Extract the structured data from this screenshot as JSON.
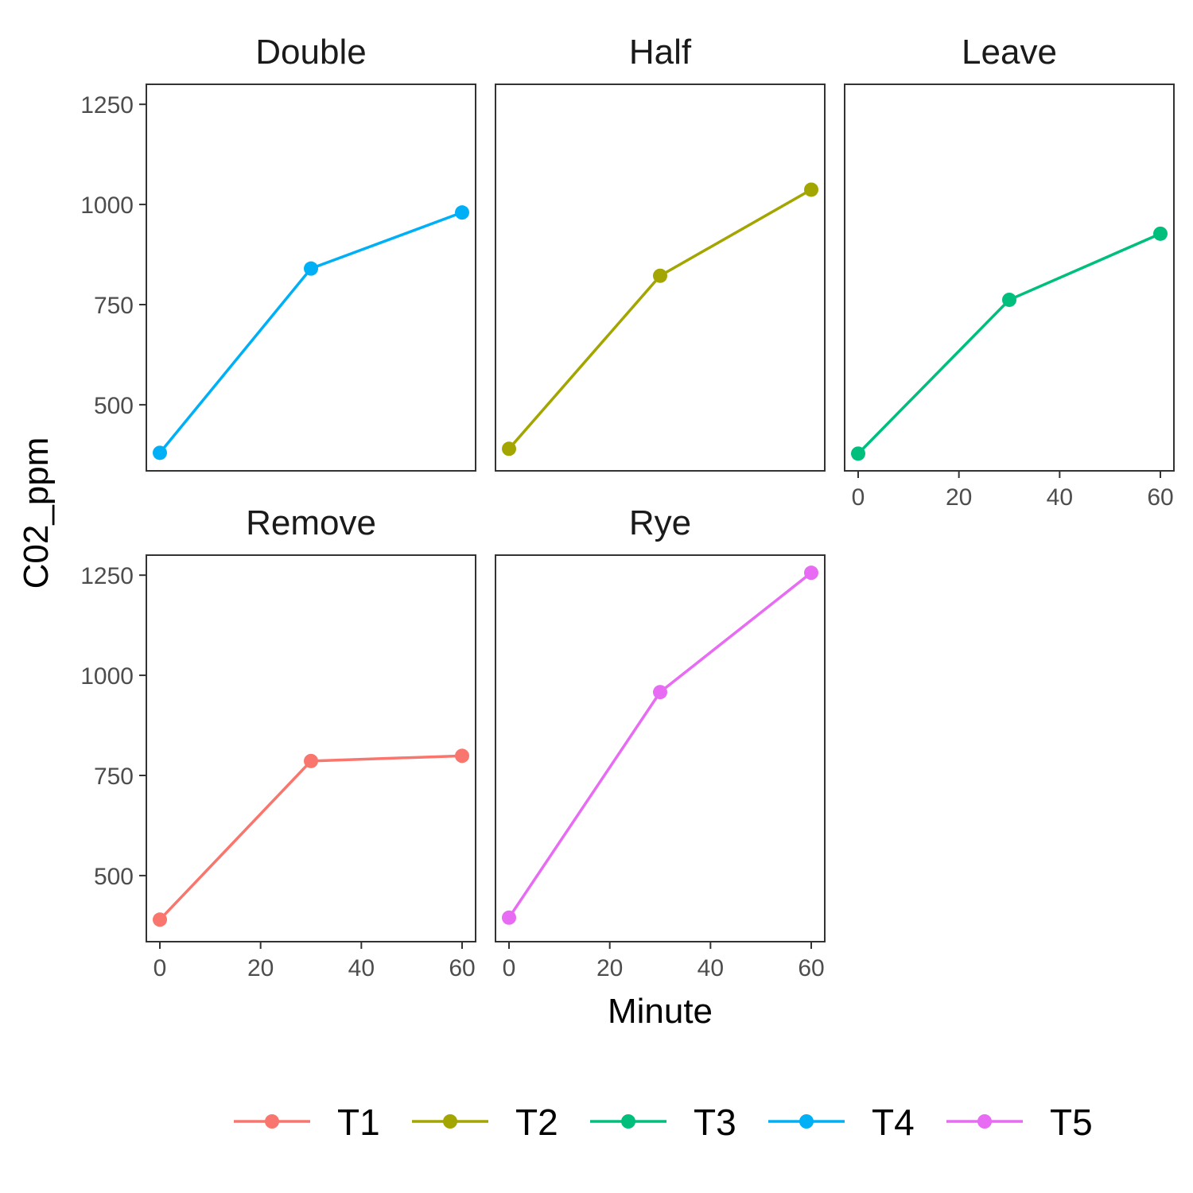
{
  "chart_data": {
    "type": "line",
    "xlabel": "Minute",
    "ylabel": "C02_ppm",
    "xlim": [
      0,
      60
    ],
    "ylim": [
      335,
      1300
    ],
    "x_ticks": [
      0,
      20,
      40,
      60
    ],
    "y_ticks": [
      500,
      750,
      1000,
      1250
    ],
    "grid": false,
    "legend_position": "bottom",
    "colors": {
      "T1": "#F8766D",
      "T2": "#A3A500",
      "T3": "#00BF7D",
      "T4": "#00B0F6",
      "T5": "#E76BF3"
    },
    "legend": [
      "T1",
      "T2",
      "T3",
      "T4",
      "T5"
    ],
    "facets": [
      {
        "title": "Double",
        "series": "T4",
        "x": [
          0,
          30,
          60
        ],
        "y": [
          380,
          840,
          980
        ]
      },
      {
        "title": "Half",
        "series": "T2",
        "x": [
          0,
          30,
          60
        ],
        "y": [
          390,
          822,
          1037
        ]
      },
      {
        "title": "Leave",
        "series": "T3",
        "x": [
          0,
          30,
          60
        ],
        "y": [
          378,
          762,
          927
        ]
      },
      {
        "title": "Remove",
        "series": "T1",
        "x": [
          0,
          30,
          60
        ],
        "y": [
          390,
          786,
          799
        ]
      },
      {
        "title": "Rye",
        "series": "T5",
        "x": [
          0,
          30,
          60
        ],
        "y": [
          395,
          958,
          1256
        ]
      }
    ]
  }
}
